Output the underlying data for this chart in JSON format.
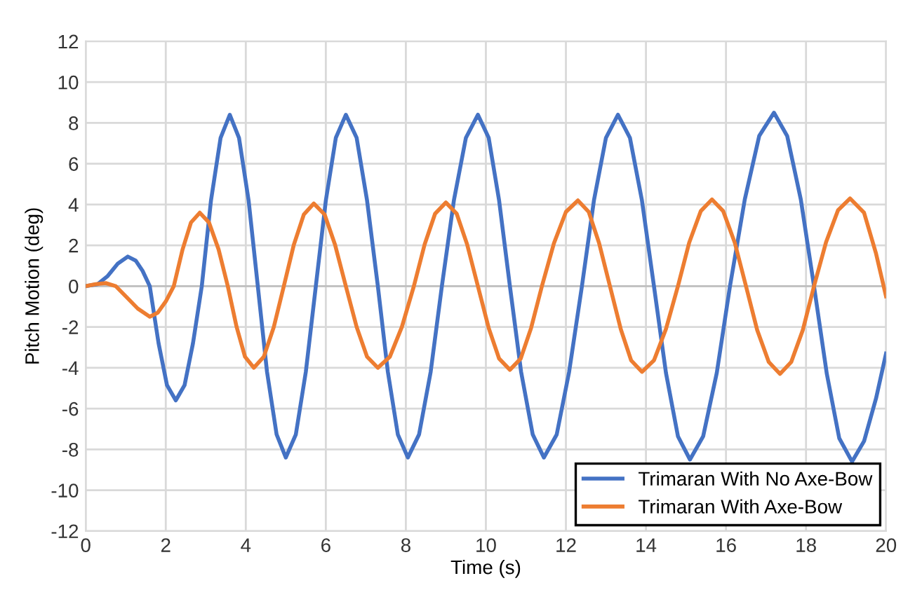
{
  "chart_data": {
    "type": "line",
    "xlabel": "Time (s)",
    "ylabel": "Pitch Motion (deg)",
    "xlim": [
      0,
      20
    ],
    "xticks": [
      0,
      2,
      4,
      6,
      8,
      10,
      12,
      14,
      16,
      18,
      20
    ],
    "ylim": [
      -12,
      12
    ],
    "yticks": [
      -12,
      -10,
      -8,
      -6,
      -4,
      -2,
      0,
      2,
      4,
      6,
      8,
      10,
      12
    ],
    "grid": true,
    "legend": "bottom right",
    "marker": "none",
    "line_style": "solid",
    "series": [
      {
        "name": "Trimaran With No Axe-Bow",
        "color": "#4472c4",
        "x": [
          0,
          0.3,
          0.55,
          0.8,
          1.05,
          1.25,
          1.42,
          1.6,
          1.82,
          2.03,
          2.25,
          2.47,
          2.68,
          2.9,
          3.13,
          3.37,
          3.6,
          3.83,
          4.07,
          4.3,
          4.53,
          4.77,
          5.0,
          5.25,
          5.5,
          5.75,
          6.0,
          6.25,
          6.5,
          6.77,
          7.03,
          7.3,
          7.55,
          7.8,
          8.05,
          8.33,
          8.62,
          8.9,
          9.2,
          9.5,
          9.8,
          10.07,
          10.33,
          10.6,
          10.88,
          11.17,
          11.45,
          11.77,
          12.08,
          12.4,
          12.7,
          13.0,
          13.3,
          13.6,
          13.9,
          14.2,
          14.5,
          14.8,
          15.1,
          15.43,
          15.77,
          16.1,
          16.47,
          16.83,
          17.2,
          17.53,
          17.87,
          18.2,
          18.52,
          18.83,
          19.15,
          19.45,
          19.75,
          20
        ],
        "values": [
          0,
          0.1,
          0.5,
          1.1,
          1.45,
          1.25,
          0.75,
          0,
          -2.8,
          -4.85,
          -5.6,
          -4.85,
          -2.8,
          0,
          4.2,
          7.27,
          8.4,
          7.27,
          4.2,
          0,
          -4.2,
          -7.27,
          -8.4,
          -7.27,
          -4.2,
          0,
          4.2,
          7.27,
          8.4,
          7.27,
          4.2,
          0,
          -4.2,
          -7.27,
          -8.4,
          -7.27,
          -4.2,
          0,
          4.2,
          7.27,
          8.4,
          7.27,
          4.2,
          0,
          -4.2,
          -7.27,
          -8.4,
          -7.27,
          -4.2,
          0,
          4.2,
          7.27,
          8.4,
          7.27,
          4.2,
          0,
          -4.25,
          -7.36,
          -8.5,
          -7.36,
          -4.25,
          0,
          4.25,
          7.36,
          8.5,
          7.36,
          4.25,
          0,
          -4.3,
          -7.45,
          -8.6,
          -7.6,
          -5.5,
          -3.3
        ]
      },
      {
        "name": "Trimaran With Axe-Bow",
        "color": "#ed7d31",
        "x": [
          0,
          0.25,
          0.5,
          0.75,
          1.0,
          1.3,
          1.6,
          1.8,
          2.0,
          2.2,
          2.42,
          2.63,
          2.85,
          3.08,
          3.32,
          3.55,
          3.77,
          3.98,
          4.2,
          4.45,
          4.7,
          4.95,
          5.2,
          5.45,
          5.7,
          5.97,
          6.23,
          6.5,
          6.77,
          7.03,
          7.3,
          7.6,
          7.9,
          8.2,
          8.47,
          8.73,
          9.0,
          9.27,
          9.53,
          9.8,
          10.07,
          10.33,
          10.6,
          10.87,
          11.13,
          11.4,
          11.7,
          12.0,
          12.3,
          12.57,
          12.83,
          13.1,
          13.37,
          13.63,
          13.9,
          14.2,
          14.5,
          14.8,
          15.08,
          15.37,
          15.65,
          15.93,
          16.22,
          16.5,
          16.78,
          17.07,
          17.35,
          17.63,
          17.92,
          18.2,
          18.5,
          18.8,
          19.1,
          19.45,
          19.75,
          20
        ],
        "values": [
          0,
          0.1,
          0.15,
          0,
          -0.5,
          -1.1,
          -1.5,
          -1.3,
          -0.75,
          0,
          1.8,
          3.12,
          3.6,
          3.12,
          1.8,
          0,
          -2.0,
          -3.46,
          -4.0,
          -3.46,
          -2.0,
          0,
          2.03,
          3.51,
          4.05,
          3.51,
          2.03,
          0,
          -2.0,
          -3.46,
          -4.0,
          -3.46,
          -2.0,
          0,
          2.05,
          3.55,
          4.1,
          3.55,
          2.05,
          0,
          -2.05,
          -3.55,
          -4.1,
          -3.55,
          -2.05,
          0,
          2.1,
          3.64,
          4.2,
          3.64,
          2.1,
          0,
          -2.1,
          -3.64,
          -4.2,
          -3.64,
          -2.1,
          0,
          2.13,
          3.68,
          4.25,
          3.68,
          2.13,
          0,
          -2.15,
          -3.72,
          -4.3,
          -3.72,
          -2.15,
          0,
          2.15,
          3.72,
          4.3,
          3.6,
          1.6,
          -0.5
        ]
      }
    ]
  }
}
